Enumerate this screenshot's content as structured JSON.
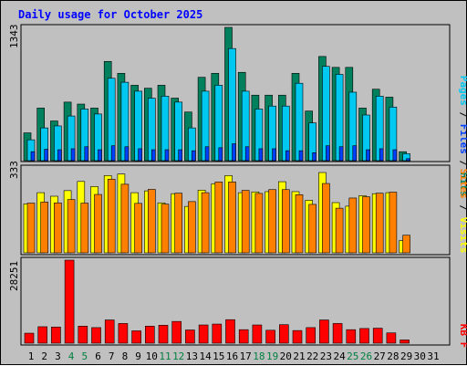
{
  "title": "Daily usage for October 2025",
  "colors": {
    "background": "#c0c0c0",
    "hits": "#00805c",
    "files": "#00c8f0",
    "pages": "#0040ff",
    "visits": "#ffff00",
    "sites": "#ff8000",
    "kbytes": "#ff0000",
    "weekend_label": "#008040",
    "weekday_label": "#000000",
    "title": "#0000ff"
  },
  "side_labels": {
    "top": [
      "Pages",
      "Files",
      "Hits"
    ],
    "middle": [
      "Sites",
      "Visits"
    ],
    "bottom": [
      "KB",
      "F"
    ]
  },
  "chart_data": [
    {
      "type": "bar",
      "panel": "hits-files-pages",
      "y_max_label": "1343",
      "ylim": [
        0,
        1343
      ],
      "categories": [
        "1",
        "2",
        "3",
        "4",
        "5",
        "6",
        "7",
        "8",
        "9",
        "10",
        "11",
        "12",
        "13",
        "14",
        "15",
        "16",
        "17",
        "18",
        "19",
        "20",
        "21",
        "22",
        "23",
        "24",
        "25",
        "26",
        "27",
        "28",
        "29",
        "30",
        "31"
      ],
      "series": [
        {
          "name": "Hits",
          "values": [
            280,
            530,
            400,
            590,
            570,
            530,
            1000,
            880,
            760,
            730,
            760,
            630,
            490,
            840,
            880,
            1343,
            890,
            660,
            660,
            660,
            880,
            500,
            1050,
            940,
            940,
            530,
            720,
            640,
            90,
            0,
            0
          ]
        },
        {
          "name": "Files",
          "values": [
            210,
            330,
            350,
            450,
            520,
            470,
            830,
            790,
            700,
            630,
            650,
            590,
            330,
            700,
            760,
            1130,
            700,
            520,
            550,
            550,
            780,
            380,
            950,
            870,
            690,
            460,
            650,
            540,
            70,
            0,
            0
          ]
        },
        {
          "name": "Pages",
          "values": [
            90,
            115,
            110,
            120,
            140,
            110,
            150,
            140,
            120,
            110,
            110,
            110,
            100,
            140,
            130,
            170,
            140,
            120,
            120,
            100,
            100,
            80,
            150,
            140,
            150,
            110,
            120,
            110,
            20,
            0,
            0
          ]
        }
      ]
    },
    {
      "type": "bar",
      "panel": "visits-sites",
      "y_max_label": "333",
      "ylim": [
        0,
        333
      ],
      "categories": [
        "1",
        "2",
        "3",
        "4",
        "5",
        "6",
        "7",
        "8",
        "9",
        "10",
        "11",
        "12",
        "13",
        "14",
        "15",
        "16",
        "17",
        "18",
        "19",
        "20",
        "21",
        "22",
        "23",
        "24",
        "25",
        "26",
        "27",
        "28",
        "29",
        "30",
        "31"
      ],
      "series": [
        {
          "name": "Visits",
          "values": [
            192,
            236,
            222,
            244,
            280,
            260,
            303,
            309,
            236,
            243,
            196,
            232,
            182,
            246,
            271,
            303,
            236,
            239,
            240,
            279,
            240,
            206,
            315,
            197,
            183,
            224,
            232,
            236,
            48,
            0,
            0
          ]
        },
        {
          "name": "Sites",
          "values": [
            195,
            199,
            196,
            209,
            195,
            229,
            289,
            269,
            194,
            249,
            191,
            234,
            201,
            236,
            278,
            278,
            245,
            233,
            248,
            248,
            228,
            190,
            272,
            175,
            215,
            220,
            234,
            238,
            69,
            0,
            0
          ]
        }
      ]
    },
    {
      "type": "bar",
      "panel": "kbytes",
      "y_max_label": "28251",
      "ylim": [
        0,
        28251
      ],
      "categories": [
        "1",
        "2",
        "3",
        "4",
        "5",
        "6",
        "7",
        "8",
        "9",
        "10",
        "11",
        "12",
        "13",
        "14",
        "15",
        "16",
        "17",
        "18",
        "19",
        "20",
        "21",
        "22",
        "23",
        "24",
        "25",
        "26",
        "27",
        "28",
        "29",
        "30",
        "31"
      ],
      "series": [
        {
          "name": "KB F",
          "values": [
            3400,
            5600,
            5500,
            28251,
            5800,
            5300,
            7900,
            6700,
            4200,
            5800,
            6100,
            7400,
            4500,
            6200,
            6500,
            8000,
            4600,
            6200,
            4400,
            6300,
            4300,
            5300,
            7900,
            6700,
            4600,
            5000,
            5100,
            3500,
            1100,
            0,
            0
          ]
        }
      ]
    }
  ],
  "weekend_days": [
    "4",
    "5",
    "11",
    "12",
    "18",
    "19",
    "25",
    "26"
  ]
}
